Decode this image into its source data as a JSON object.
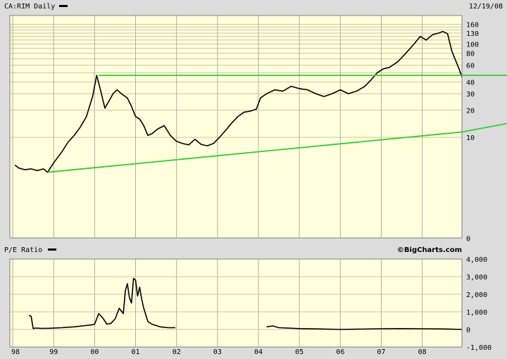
{
  "chart_data": [
    {
      "type": "line",
      "title": "CA:RIM Daily",
      "date": "12/19/08",
      "y_scale": "log",
      "y_ticks": [
        "160",
        "130",
        "100",
        "80",
        "60",
        "40",
        "30",
        "20",
        "10",
        "0"
      ],
      "y_tick_values": [
        160,
        130,
        100,
        80,
        60,
        40,
        30,
        20,
        10,
        0
      ],
      "x_ticks": [
        "98",
        "99",
        "00",
        "01",
        "02",
        "03",
        "04",
        "05",
        "06",
        "07",
        "08"
      ],
      "series": [
        {
          "line_color": "#000000",
          "x": [
            1998.05,
            1998.15,
            1998.3,
            1998.45,
            1998.6,
            1998.75,
            1998.85,
            1999.0,
            1999.2,
            1999.35,
            1999.5,
            1999.65,
            1999.8,
            1999.95,
            2000.05,
            2000.15,
            2000.25,
            2000.35,
            2000.45,
            2000.55,
            2000.65,
            2000.8,
            2000.9,
            2001.0,
            2001.1,
            2001.2,
            2001.3,
            2001.4,
            2001.55,
            2001.7,
            2001.85,
            2002.0,
            2002.15,
            2002.3,
            2002.45,
            2002.6,
            2002.75,
            2002.9,
            2003.05,
            2003.2,
            2003.35,
            2003.5,
            2003.65,
            2003.8,
            2003.95,
            2004.05,
            2004.2,
            2004.4,
            2004.6,
            2004.8,
            2005.0,
            2005.2,
            2005.4,
            2005.6,
            2005.8,
            2006.0,
            2006.2,
            2006.4,
            2006.6,
            2006.75,
            2006.9,
            2007.05,
            2007.2,
            2007.4,
            2007.6,
            2007.8,
            2007.95,
            2008.1,
            2008.25,
            2008.4,
            2008.5,
            2008.62,
            2008.72,
            2008.8,
            2008.9,
            2008.97
          ],
          "values": [
            4.7,
            4.3,
            4.1,
            4.2,
            4.0,
            4.2,
            3.8,
            5.0,
            6.8,
            8.8,
            10.5,
            13.0,
            17.0,
            28.0,
            47.0,
            32.0,
            21.0,
            25.0,
            30.0,
            33.0,
            30.0,
            27.0,
            22.0,
            17.0,
            16.0,
            13.5,
            10.5,
            11.0,
            12.5,
            13.5,
            10.5,
            9.0,
            8.5,
            8.2,
            9.5,
            8.3,
            8.0,
            8.5,
            10.0,
            12.0,
            14.5,
            17.0,
            19.0,
            19.5,
            20.5,
            27.0,
            30.0,
            33.0,
            32.0,
            36.0,
            34.0,
            33.0,
            30.0,
            28.0,
            30.0,
            33.0,
            30.0,
            32.0,
            36.0,
            42.0,
            50.0,
            55.0,
            57.0,
            65.0,
            80.0,
            100.0,
            120.0,
            110.0,
            125.0,
            130.0,
            135.0,
            128.0,
            85.0,
            70.0,
            55.0,
            45.0
          ]
        },
        {
          "line_color": "#33cc33",
          "x": [
            2000.1,
            2008.97
          ],
          "values": [
            47.0,
            47.0
          ]
        },
        {
          "line_color": "#33cc33",
          "x": [
            1998.85,
            2008.97
          ],
          "values": [
            3.8,
            11.5
          ]
        }
      ],
      "grid": true,
      "background": "#ffffdd"
    },
    {
      "type": "line",
      "title": "P/E Ratio",
      "credit": "©BigCharts.com",
      "ylim": [
        -1000,
        4000
      ],
      "y_ticks": [
        "4,000",
        "3,000",
        "2,000",
        "1,000",
        "0",
        "-1,000"
      ],
      "y_tick_values": [
        4000,
        3000,
        2000,
        1000,
        0,
        -1000
      ],
      "series": [
        {
          "line_color": "#000000",
          "segments": [
            {
              "x": [
                1998.4,
                1998.45,
                1998.5,
                1998.55,
                1998.7,
                1998.9,
                1999.2,
                1999.5,
                1999.7,
                1999.9,
                2000.0,
                2000.05,
                2000.1,
                2000.2,
                2000.3,
                2000.4,
                2000.5,
                2000.6,
                2000.7,
                2000.75,
                2000.8,
                2000.85,
                2000.9,
                2000.95,
                2001.0,
                2001.05,
                2001.1,
                2001.15,
                2001.2,
                2001.3,
                2001.4,
                2001.6,
                2001.8,
                2001.97
              ],
              "values": [
                800,
                750,
                50,
                80,
                60,
                70,
                100,
                150,
                200,
                250,
                300,
                600,
                900,
                650,
                300,
                350,
                600,
                1200,
                900,
                2200,
                2600,
                1800,
                1500,
                2900,
                2800,
                1900,
                2400,
                1700,
                1200,
                450,
                300,
                150,
                100,
                100
              ]
            },
            {
              "x": [
                2004.2,
                2004.35,
                2004.5,
                2005.0,
                2005.5,
                2006.0,
                2006.5,
                2007.0,
                2007.5,
                2008.0,
                2008.5,
                2008.97
              ],
              "values": [
                150,
                200,
                100,
                50,
                30,
                0,
                20,
                40,
                50,
                40,
                30,
                0
              ]
            }
          ]
        }
      ],
      "grid": true,
      "background": "#ffffdd"
    }
  ]
}
